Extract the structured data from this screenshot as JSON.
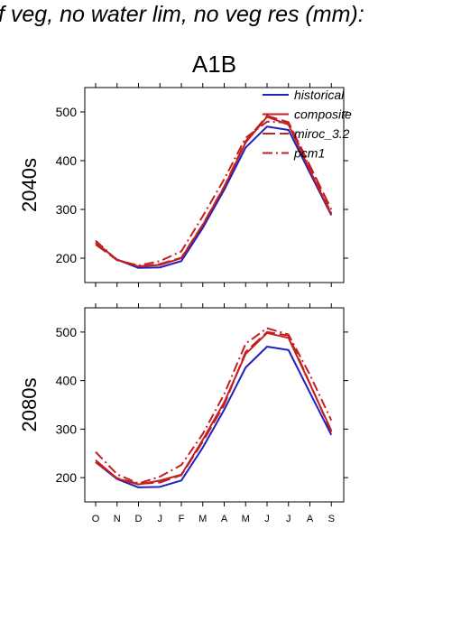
{
  "page_title": "f veg, no water lim, no veg res (mm):",
  "chart_data": [
    {
      "type": "line",
      "title": "A1B",
      "panel_label": "2040s",
      "categories": [
        "O",
        "N",
        "D",
        "J",
        "F",
        "M",
        "A",
        "M",
        "J",
        "J",
        "A",
        "S"
      ],
      "ylim": [
        150,
        550
      ],
      "yticks": [
        200,
        300,
        400,
        500
      ],
      "legend_position": "top-right",
      "series": [
        {
          "name": "historical",
          "color": "#2020c0",
          "dash": "solid",
          "values": [
            232,
            197,
            180,
            181,
            194,
            262,
            340,
            427,
            470,
            463,
            375,
            288
          ]
        },
        {
          "name": "composite",
          "color": "#c02020",
          "dash": "solid",
          "values": [
            232,
            197,
            183,
            186,
            200,
            268,
            346,
            437,
            490,
            474,
            380,
            290
          ]
        },
        {
          "name": "miroc_3.2",
          "color": "#c02020",
          "dash": "longdash",
          "values": [
            228,
            196,
            183,
            188,
            201,
            269,
            347,
            440,
            492,
            479,
            390,
            300
          ]
        },
        {
          "name": "pcm1",
          "color": "#c02020",
          "dash": "dashdot",
          "values": [
            236,
            196,
            185,
            194,
            214,
            286,
            362,
            447,
            480,
            478,
            385,
            292
          ]
        }
      ]
    },
    {
      "type": "line",
      "panel_label": "2080s",
      "categories": [
        "O",
        "N",
        "D",
        "J",
        "F",
        "M",
        "A",
        "M",
        "J",
        "J",
        "A",
        "S"
      ],
      "ylim": [
        150,
        550
      ],
      "yticks": [
        200,
        300,
        400,
        500
      ],
      "series": [
        {
          "name": "historical",
          "color": "#2020c0",
          "dash": "solid",
          "values": [
            232,
            197,
            180,
            181,
            194,
            262,
            340,
            427,
            470,
            463,
            375,
            288
          ]
        },
        {
          "name": "composite",
          "color": "#c02020",
          "dash": "solid",
          "values": [
            236,
            198,
            186,
            194,
            206,
            278,
            355,
            455,
            498,
            488,
            393,
            297
          ]
        },
        {
          "name": "miroc_3.2",
          "color": "#c02020",
          "dash": "longdash",
          "values": [
            232,
            199,
            187,
            190,
            205,
            274,
            350,
            459,
            500,
            493,
            394,
            294
          ]
        },
        {
          "name": "pcm1",
          "color": "#c02020",
          "dash": "dashdot",
          "values": [
            253,
            207,
            188,
            202,
            226,
            290,
            372,
            476,
            508,
            495,
            412,
            318
          ]
        }
      ]
    }
  ]
}
